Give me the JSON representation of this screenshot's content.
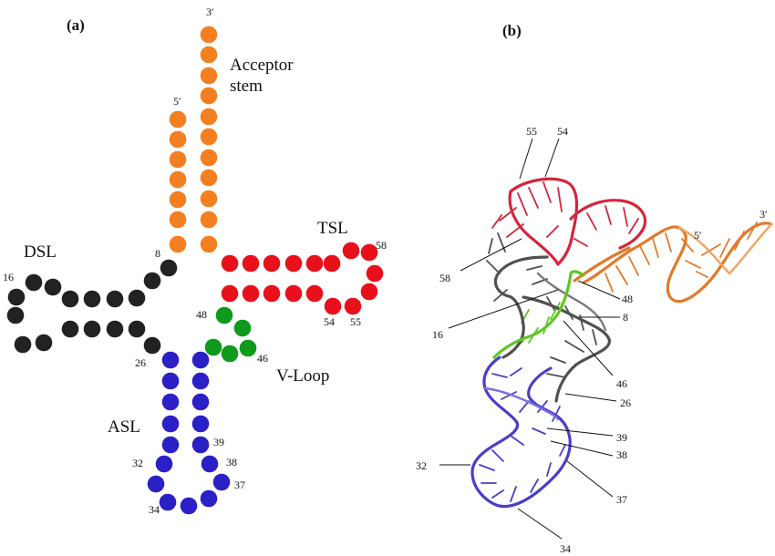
{
  "panels": {
    "a": "(a)",
    "b": "(b)"
  },
  "regions": {
    "acceptor_line1": "Acceptor",
    "acceptor_line2": "stem",
    "tsl": "TSL",
    "dsl": "DSL",
    "vloop": "V-Loop",
    "asl": "ASL"
  },
  "colors": {
    "acceptor": "#f47f20",
    "tsl": "#e8101a",
    "dsl": "#222222",
    "vloop": "#0f9a1c",
    "asl": "#2b1fc6",
    "structure_red": "#d4253c",
    "structure_orange": "#e07a2a",
    "structure_gray": "#505050",
    "structure_green": "#5ec626",
    "structure_blue": "#4a3fc8"
  },
  "panel_a_numbers": {
    "three_prime": "3′",
    "five_prime": "5′",
    "n8": "8",
    "n16": "16",
    "n26": "26",
    "n32": "32",
    "n34": "34",
    "n37": "37",
    "n38": "38",
    "n39": "39",
    "n46": "46",
    "n48": "48",
    "n54": "54",
    "n55": "55",
    "n58": "58"
  },
  "panel_b_numbers": {
    "n55": "55",
    "n54": "54",
    "three_prime": "3′",
    "five_prime": "5′",
    "n58": "58",
    "n48": "48",
    "n8": "8",
    "n16": "16",
    "n46": "46",
    "n26": "26",
    "n39": "39",
    "n38": "38",
    "n32": "32",
    "n37": "37",
    "n34": "34"
  }
}
